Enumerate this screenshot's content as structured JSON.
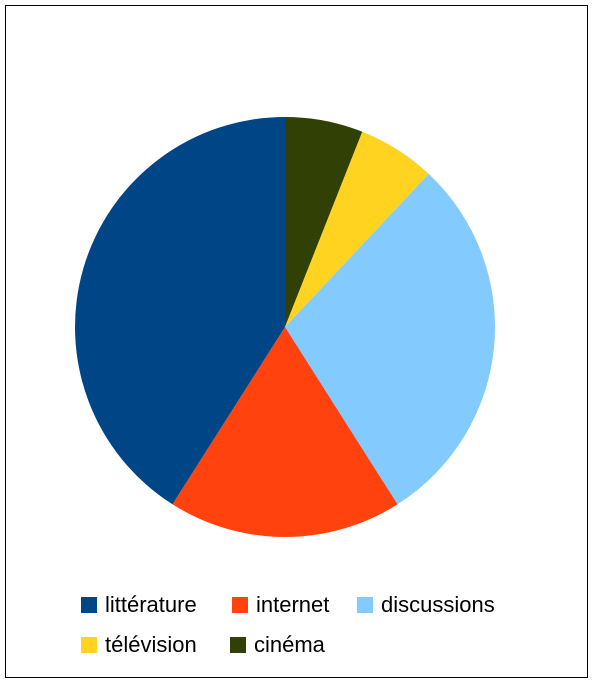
{
  "chart_data": {
    "type": "pie",
    "title": "",
    "categories": [
      "littérature",
      "internet",
      "discussions",
      "télévision",
      "cinéma"
    ],
    "values": [
      41,
      18,
      29,
      6,
      6
    ],
    "colors": [
      "#004586",
      "#ff420e",
      "#83caff",
      "#ffd320",
      "#314004"
    ],
    "legend_position": "bottom",
    "start_angle": "top",
    "direction": "clockwise from cinéma"
  }
}
